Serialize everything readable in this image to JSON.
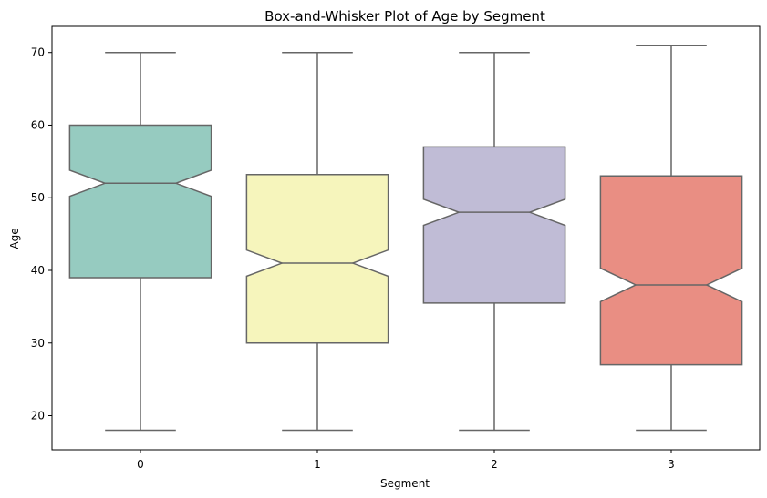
{
  "chart_data": {
    "type": "box",
    "title": "Box-and-Whisker Plot of Age by Segment",
    "xlabel": "Segment",
    "ylabel": "Age",
    "categories": [
      "0",
      "1",
      "2",
      "3"
    ],
    "ylim": [
      15.3,
      73.6
    ],
    "yticks": [
      20,
      30,
      40,
      50,
      60,
      70
    ],
    "notched": true,
    "grid": false,
    "legend": "none",
    "boxes": [
      {
        "category": "0",
        "min": 18,
        "q1": 39,
        "median": 52,
        "q3": 60,
        "max": 70,
        "notch_low": 50.2,
        "notch_high": 53.8,
        "color": "#96cbc0"
      },
      {
        "category": "1",
        "min": 18,
        "q1": 30,
        "median": 41,
        "q3": 53.2,
        "max": 70,
        "notch_low": 39.2,
        "notch_high": 42.8,
        "color": "#f6f5bc"
      },
      {
        "category": "2",
        "min": 18,
        "q1": 35.5,
        "median": 48,
        "q3": 57,
        "max": 70,
        "notch_low": 46.2,
        "notch_high": 49.8,
        "color": "#c0bcd6"
      },
      {
        "category": "3",
        "min": 18,
        "q1": 27,
        "median": 38,
        "q3": 53,
        "max": 71,
        "notch_low": 35.7,
        "notch_high": 40.3,
        "color": "#e98e83"
      }
    ],
    "line_color": "#666666"
  }
}
